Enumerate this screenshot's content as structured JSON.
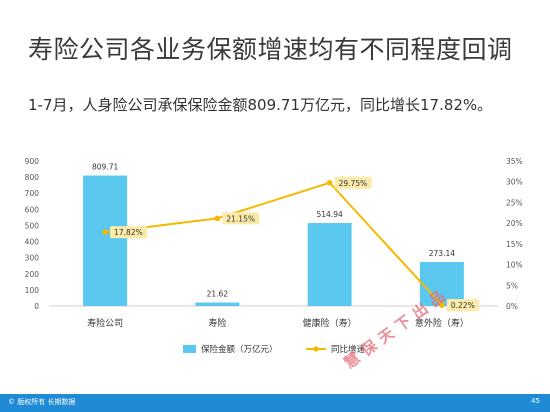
{
  "slide": {
    "title": "寿险公司各业务保额增速均有不同程度回调",
    "subtitle": "1-7月，人身险公司承保保险金额809.71万亿元，同比增长17.82%。",
    "footer_text": "© 版权所有 长期数据",
    "page_number": "45",
    "watermark": "慧保天下出品"
  },
  "chart_data": {
    "type": "bar",
    "categories": [
      "寿险公司",
      "寿险",
      "健康险（寿）",
      "意外险（寿）"
    ],
    "series": [
      {
        "name": "保险金额（万亿元）",
        "type": "bar",
        "axis": "left",
        "values": [
          809.71,
          21.62,
          514.94,
          273.14
        ],
        "labels": [
          "809.71",
          "21.62",
          "514.94",
          "273.14"
        ],
        "color": "#5bc8f0"
      },
      {
        "name": "同比增速",
        "type": "line",
        "axis": "right",
        "values": [
          17.82,
          21.15,
          29.75,
          0.22
        ],
        "labels": [
          "17.82%",
          "21.15%",
          "29.75%",
          "0.22%"
        ],
        "color": "#f5b800"
      }
    ],
    "y_left": {
      "min": 0,
      "max": 900,
      "ticks": [
        "0",
        "100",
        "200",
        "300",
        "400",
        "500",
        "600",
        "700",
        "800",
        "900"
      ]
    },
    "y_right": {
      "min": 0,
      "max": 35,
      "ticks": [
        "0%",
        "5%",
        "10%",
        "15%",
        "20%",
        "25%",
        "30%",
        "35%"
      ]
    },
    "grid": false,
    "legend_position": "bottom",
    "label_box_color": "#fbeaa8"
  }
}
